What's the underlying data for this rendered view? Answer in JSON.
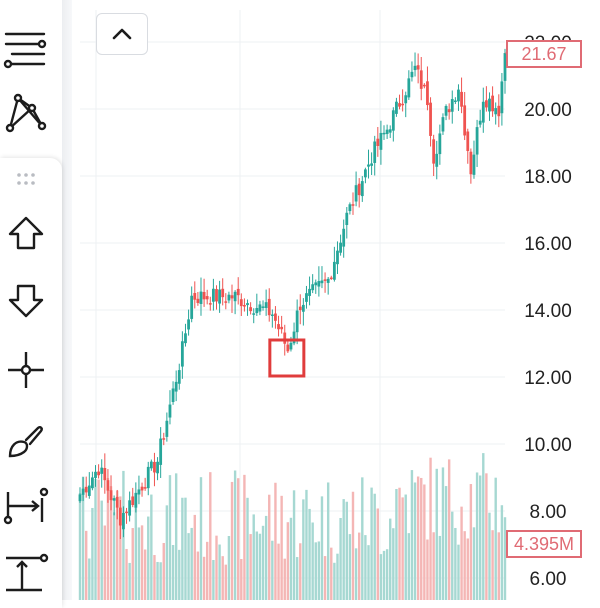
{
  "toolbar": {
    "tools": [
      {
        "name": "indicators-icon"
      },
      {
        "name": "pattern-icon"
      },
      {
        "name": "drag-handle-icon"
      },
      {
        "name": "arrow-up-icon"
      },
      {
        "name": "arrow-down-icon"
      },
      {
        "name": "crosshair-icon"
      },
      {
        "name": "brush-icon"
      },
      {
        "name": "range-measure-icon"
      },
      {
        "name": "vertical-measure-icon"
      }
    ]
  },
  "chart": {
    "collapse_icon": "chevron-up-icon",
    "last_price_label": "21.67",
    "volume_label": "4.395M",
    "y_ticks": [
      "6.00",
      "8.00",
      "10.00",
      "12.00",
      "14.00",
      "16.00",
      "18.00",
      "20.00",
      "22.00"
    ],
    "colors": {
      "up": "#26a69a",
      "down": "#ef5350",
      "volume_up": "#a6d8d2",
      "volume_down": "#f4b6b5",
      "highlight_box": "#e03c3c",
      "grid": "#eef0f3",
      "tag": "#e06b74"
    }
  },
  "chart_data": {
    "type": "candlestick",
    "y_range": [
      6.0,
      22.5
    ],
    "last_price": 21.67,
    "last_volume": "4.395M",
    "trend_keypoints": [
      {
        "i": 0,
        "price": 8.5
      },
      {
        "i": 6,
        "price": 9.3
      },
      {
        "i": 13,
        "price": 7.8
      },
      {
        "i": 25,
        "price": 9.5
      },
      {
        "i": 33,
        "price": 12.8
      },
      {
        "i": 36,
        "price": 14.4
      },
      {
        "i": 50,
        "price": 14.4
      },
      {
        "i": 62,
        "price": 13.9
      },
      {
        "i": 67,
        "price": 12.8
      },
      {
        "i": 71,
        "price": 14.2
      },
      {
        "i": 80,
        "price": 14.9
      },
      {
        "i": 86,
        "price": 16.8
      },
      {
        "i": 94,
        "price": 18.6
      },
      {
        "i": 99,
        "price": 19.4
      },
      {
        "i": 104,
        "price": 20.4
      },
      {
        "i": 108,
        "price": 21.2
      },
      {
        "i": 112,
        "price": 20.3
      },
      {
        "i": 114,
        "price": 18.6
      },
      {
        "i": 118,
        "price": 19.9
      },
      {
        "i": 122,
        "price": 20.7
      },
      {
        "i": 126,
        "price": 18.2
      },
      {
        "i": 130,
        "price": 20.4
      },
      {
        "i": 135,
        "price": 20.0
      },
      {
        "i": 137,
        "price": 21.67
      }
    ],
    "highlight_candle_index": 67
  }
}
